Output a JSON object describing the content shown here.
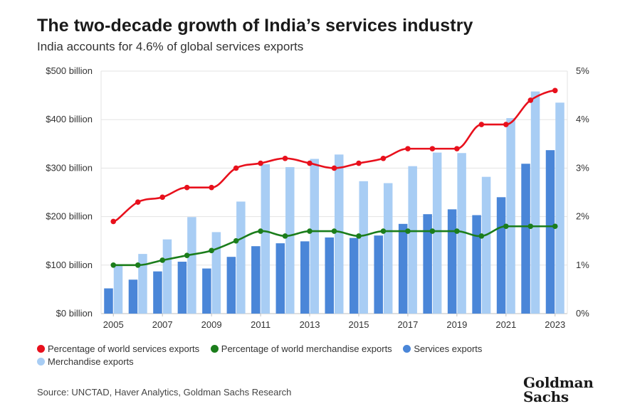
{
  "header": {
    "title": "The two-decade growth of India’s services industry",
    "subtitle": "India accounts for 4.6% of global services exports"
  },
  "footer": {
    "source": "Source: UNCTAD, Haver Analytics, Goldman Sachs Research",
    "logo_line1": "Goldman",
    "logo_line2": "Sachs"
  },
  "colors": {
    "services_line": "#e8101c",
    "merchandise_line": "#1b7d1b",
    "services_bar": "#4a86d8",
    "merchandise_bar": "#a8cdf4",
    "gridline": "#e3e3e3"
  },
  "chart_data": {
    "type": "bar",
    "years": [
      2005,
      2006,
      2007,
      2008,
      2009,
      2010,
      2011,
      2012,
      2013,
      2014,
      2015,
      2016,
      2017,
      2018,
      2019,
      2020,
      2021,
      2022,
      2023
    ],
    "x_tick_labels": [
      "2005",
      "2007",
      "2009",
      "2011",
      "2013",
      "2015",
      "2017",
      "2019",
      "2021",
      "2023"
    ],
    "y_left": {
      "ylim": [
        0,
        500
      ],
      "ticks": [
        "$0 billion",
        "$100 billion",
        "$200 billion",
        "$300 billion",
        "$400 billion",
        "$500 billion"
      ]
    },
    "y_right": {
      "ylim": [
        0,
        5
      ],
      "ticks": [
        "0%",
        "1%",
        "2%",
        "3%",
        "4%",
        "5%"
      ]
    },
    "grid": "horizontal",
    "legend_position": "bottom",
    "series": [
      {
        "name": "Percentage of world services exports",
        "kind": "line",
        "axis": "right",
        "values": [
          1.9,
          2.3,
          2.4,
          2.6,
          2.6,
          3.0,
          3.1,
          3.2,
          3.1,
          3.0,
          3.1,
          3.2,
          3.4,
          3.4,
          3.4,
          3.9,
          3.9,
          4.4,
          4.6
        ]
      },
      {
        "name": "Percentage of world merchandise exports",
        "kind": "line",
        "axis": "right",
        "values": [
          1.0,
          1.0,
          1.1,
          1.2,
          1.3,
          1.5,
          1.7,
          1.6,
          1.7,
          1.7,
          1.6,
          1.7,
          1.7,
          1.7,
          1.7,
          1.6,
          1.8,
          1.8,
          1.8
        ]
      },
      {
        "name": "Services exports",
        "kind": "bar",
        "axis": "left",
        "values": [
          52,
          70,
          87,
          107,
          93,
          117,
          139,
          145,
          149,
          157,
          156,
          161,
          185,
          205,
          215,
          203,
          240,
          309,
          337
        ]
      },
      {
        "name": "Merchandise exports",
        "kind": "bar",
        "axis": "left",
        "values": [
          100,
          123,
          153,
          199,
          168,
          231,
          308,
          302,
          319,
          328,
          273,
          269,
          304,
          332,
          331,
          282,
          403,
          458,
          435
        ]
      }
    ]
  }
}
